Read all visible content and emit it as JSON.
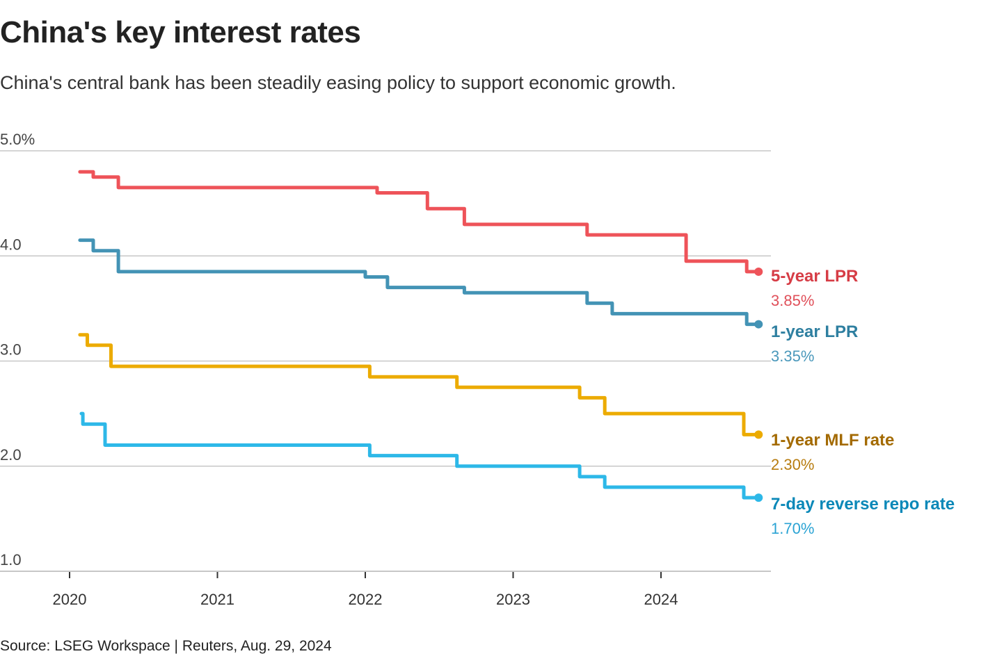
{
  "chart_data": {
    "type": "line",
    "subtype": "step",
    "title": "China's key interest rates",
    "subtitle": "China's central bank has been steadily easing policy to support economic growth.",
    "source": "Source: LSEG Workspace | Reuters, Aug. 29, 2024",
    "xlabel": "",
    "ylabel": "",
    "ylim": [
      1.0,
      5.0
    ],
    "xlim": [
      2019.6,
      2024.75
    ],
    "y_ticks": [
      {
        "value": 5.0,
        "label": "5.0%"
      },
      {
        "value": 4.0,
        "label": "4.0"
      },
      {
        "value": 3.0,
        "label": "3.0"
      },
      {
        "value": 2.0,
        "label": "2.0"
      },
      {
        "value": 1.0,
        "label": "1.0"
      }
    ],
    "x_ticks": [
      {
        "value": 2020,
        "label": "2020"
      },
      {
        "value": 2021,
        "label": "2021"
      },
      {
        "value": 2022,
        "label": "2022"
      },
      {
        "value": 2023,
        "label": "2023"
      },
      {
        "value": 2024,
        "label": "2024"
      }
    ],
    "grid": true,
    "legend": "direct-labels-right",
    "series": [
      {
        "name": "5-year LPR",
        "latest_label": "3.85%",
        "color": "#ee5359",
        "label_color": "#d63c45",
        "value_color": "#e0505a",
        "x": [
          2020.07,
          2020.16,
          2020.33,
          2022.08,
          2022.42,
          2022.67,
          2023.5,
          2024.17,
          2024.58,
          2024.66
        ],
        "values": [
          4.8,
          4.75,
          4.65,
          4.6,
          4.45,
          4.3,
          4.2,
          3.95,
          3.85,
          3.85
        ]
      },
      {
        "name": "1-year LPR",
        "latest_label": "3.35%",
        "color": "#4393b5",
        "label_color": "#2e7fa0",
        "value_color": "#4a98bb",
        "x": [
          2020.07,
          2020.16,
          2020.33,
          2022.0,
          2022.15,
          2022.67,
          2023.5,
          2023.67,
          2024.58,
          2024.66
        ],
        "values": [
          4.15,
          4.05,
          3.85,
          3.8,
          3.7,
          3.65,
          3.55,
          3.45,
          3.35,
          3.35
        ]
      },
      {
        "name": "1-year MLF rate",
        "latest_label": "2.30%",
        "color": "#ecab00",
        "label_color": "#a36a00",
        "value_color": "#b87d10",
        "x": [
          2020.07,
          2020.12,
          2020.28,
          2022.03,
          2022.62,
          2023.45,
          2023.62,
          2024.56,
          2024.66
        ],
        "values": [
          3.25,
          3.15,
          2.95,
          2.85,
          2.75,
          2.65,
          2.5,
          2.3,
          2.3
        ]
      },
      {
        "name": "7-day reverse repo rate",
        "latest_label": "1.70%",
        "color": "#2db8e8",
        "label_color": "#0a88b8",
        "value_color": "#2aa3d4",
        "x": [
          2020.08,
          2020.09,
          2020.24,
          2022.03,
          2022.62,
          2023.45,
          2023.62,
          2024.56,
          2024.66
        ],
        "values": [
          2.5,
          2.4,
          2.2,
          2.1,
          2.0,
          1.9,
          1.8,
          1.7,
          1.7
        ]
      }
    ]
  }
}
